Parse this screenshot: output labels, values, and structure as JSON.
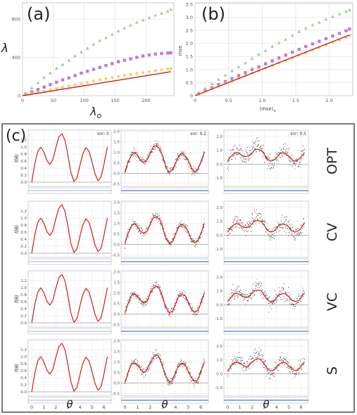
{
  "panel_labels": {
    "a": "(a)",
    "b": "(b)",
    "c": "(c)"
  },
  "colors": {
    "green": "#a6c99a",
    "purple": "#b77fd6",
    "yellow": "#f2cf62",
    "red": "#d21c1c",
    "black": "#333333",
    "residual": "#5b7fb8",
    "grid": "#dddddd"
  },
  "chart_data": [
    {
      "id": "a",
      "type": "scatter",
      "title": "",
      "xlabel": "λ_o",
      "ylabel": "λ",
      "xlim": [
        0,
        245
      ],
      "ylim": [
        0,
        970
      ],
      "xticks": [
        "0",
        "50",
        "100",
        "150",
        "200"
      ],
      "yticks": [
        "0",
        "400",
        "800"
      ],
      "grid": true,
      "series": [
        {
          "color": "green",
          "marker": "triangle",
          "x": [
            5,
            15,
            25,
            35,
            45,
            55,
            65,
            75,
            85,
            95,
            105,
            115,
            125,
            135,
            145,
            155,
            165,
            175,
            185,
            195,
            205,
            215,
            225,
            235,
            240
          ],
          "y": [
            28,
            80,
            135,
            190,
            235,
            285,
            325,
            370,
            415,
            455,
            495,
            535,
            575,
            605,
            640,
            675,
            705,
            735,
            765,
            790,
            815,
            840,
            860,
            880,
            900
          ]
        },
        {
          "color": "purple",
          "marker": "square",
          "x": [
            5,
            15,
            25,
            35,
            45,
            55,
            65,
            75,
            85,
            95,
            105,
            115,
            125,
            135,
            145,
            155,
            165,
            175,
            185,
            195,
            205,
            215,
            225,
            235,
            240
          ],
          "y": [
            12,
            40,
            65,
            90,
            115,
            140,
            165,
            185,
            210,
            235,
            255,
            275,
            295,
            315,
            335,
            355,
            370,
            385,
            400,
            415,
            425,
            435,
            440,
            445,
            448
          ]
        },
        {
          "color": "yellow",
          "marker": "circle",
          "x": [
            5,
            15,
            25,
            35,
            45,
            55,
            65,
            75,
            85,
            95,
            105,
            115,
            125,
            135,
            145,
            155,
            165,
            175,
            185,
            195,
            205,
            215,
            225,
            235,
            240
          ],
          "y": [
            8,
            22,
            35,
            50,
            62,
            75,
            88,
            100,
            115,
            128,
            140,
            152,
            165,
            178,
            190,
            200,
            212,
            222,
            232,
            242,
            252,
            262,
            270,
            278,
            282
          ]
        },
        {
          "color": "red",
          "marker": "line",
          "x": [
            0,
            240
          ],
          "y": [
            0,
            250
          ]
        }
      ]
    },
    {
      "id": "b",
      "type": "scatter",
      "title": "",
      "xlabel": "⟨mse⟩_o",
      "ylabel": "mse",
      "xlim": [
        0,
        2.35
      ],
      "ylim": [
        0,
        3.55
      ],
      "xticks": [
        "0",
        "0.5",
        "1.0",
        "1.5",
        "2.0"
      ],
      "yticks": [
        "0",
        "0.5",
        "1.0",
        "1.5",
        "2.0",
        "2.5",
        "3.0",
        "3.5"
      ],
      "grid": true,
      "series": [
        {
          "color": "green",
          "marker": "triangle",
          "x": [
            0.05,
            0.15,
            0.25,
            0.35,
            0.45,
            0.55,
            0.65,
            0.75,
            0.85,
            0.95,
            1.05,
            1.15,
            1.25,
            1.35,
            1.45,
            1.55,
            1.65,
            1.75,
            1.85,
            1.95,
            2.05,
            2.15,
            2.25,
            2.3
          ],
          "y": [
            0.1,
            0.28,
            0.45,
            0.62,
            0.78,
            0.95,
            1.1,
            1.25,
            1.42,
            1.58,
            1.72,
            1.88,
            2.02,
            2.15,
            2.3,
            2.45,
            2.58,
            2.7,
            2.8,
            2.92,
            3.02,
            3.12,
            3.22,
            3.28
          ]
        },
        {
          "color": "purple",
          "marker": "square",
          "x": [
            0.05,
            0.15,
            0.25,
            0.35,
            0.45,
            0.55,
            0.65,
            0.75,
            0.85,
            0.95,
            1.05,
            1.15,
            1.25,
            1.35,
            1.45,
            1.55,
            1.65,
            1.75,
            1.85,
            1.95,
            2.05,
            2.15,
            2.25,
            2.3
          ],
          "y": [
            0.07,
            0.18,
            0.3,
            0.42,
            0.54,
            0.65,
            0.77,
            0.88,
            1.0,
            1.1,
            1.22,
            1.33,
            1.44,
            1.55,
            1.66,
            1.77,
            1.88,
            1.98,
            2.08,
            2.18,
            2.28,
            2.38,
            2.48,
            2.55
          ]
        },
        {
          "color": "yellow",
          "marker": "circle",
          "x": [
            0.05,
            0.15,
            0.25,
            0.35,
            0.45,
            0.55,
            0.65,
            0.75,
            0.85,
            0.95,
            1.05,
            1.15,
            1.25,
            1.35,
            1.45,
            1.55,
            1.65,
            1.75,
            1.85,
            1.95,
            2.05,
            2.15,
            2.25,
            2.3
          ],
          "y": [
            0.05,
            0.15,
            0.26,
            0.36,
            0.47,
            0.56,
            0.66,
            0.76,
            0.86,
            0.95,
            1.05,
            1.15,
            1.25,
            1.34,
            1.44,
            1.54,
            1.64,
            1.73,
            1.83,
            1.93,
            2.03,
            2.12,
            2.22,
            2.3
          ]
        },
        {
          "color": "red",
          "marker": "line",
          "x": [
            0,
            2.3
          ],
          "y": [
            0,
            2.32
          ]
        }
      ]
    },
    {
      "id": "c",
      "type": "line",
      "ylabel": "f(θ)",
      "xlabel": "θ",
      "xlim": [
        -0.3,
        6.6
      ],
      "xticks": [
        "0",
        "1",
        "2",
        "3",
        "4",
        "5",
        "6"
      ],
      "columns": [
        {
          "snr": "snr: 0",
          "noise": 0.0,
          "ylim": [
            -0.12,
            1.48
          ],
          "yticks": [
            "0.0",
            "0.2",
            "0.4",
            "0.6",
            "0.8",
            "1.0",
            "1.2"
          ]
        },
        {
          "snr": "snr: 0.2",
          "noise": 0.2,
          "ylim": [
            -0.62,
            2.05
          ],
          "yticks": [
            "-0.5",
            "0.0",
            "0.5",
            "1.0",
            "1.5",
            "2.0"
          ]
        },
        {
          "snr": "snr: 0.5",
          "noise": 0.5,
          "ylim": [
            -1.6,
            2.45
          ],
          "yticks": [
            "-1.0",
            "0.0",
            "1.0",
            "2.0"
          ]
        }
      ],
      "rows": [
        "OPT",
        "CV",
        "VC",
        "S"
      ],
      "true_function": {
        "x": [
          0,
          0.25,
          0.5,
          0.75,
          1.0,
          1.25,
          1.5,
          1.75,
          2.0,
          2.25,
          2.5,
          2.75,
          3.0,
          3.25,
          3.5,
          3.75,
          4.0,
          4.25,
          4.5,
          4.75,
          5.0,
          5.25,
          5.5,
          5.75,
          6.0,
          6.28
        ],
        "y": [
          0.0,
          0.52,
          0.88,
          1.0,
          0.86,
          0.62,
          0.5,
          0.64,
          0.98,
          1.28,
          1.38,
          1.2,
          0.78,
          0.28,
          0.02,
          0.12,
          0.48,
          0.82,
          0.98,
          0.88,
          0.58,
          0.24,
          0.04,
          0.14,
          0.52,
          1.0
        ]
      }
    }
  ]
}
